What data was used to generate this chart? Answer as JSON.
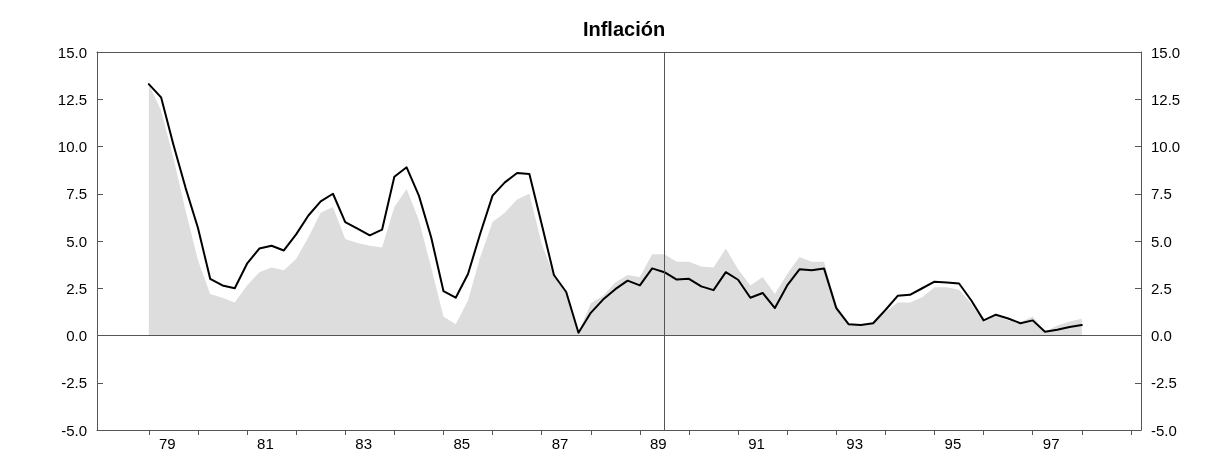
{
  "chart_data": {
    "type": "line",
    "title": "Inflación",
    "x": [
      78.625,
      78.875,
      79.125,
      79.375,
      79.625,
      79.875,
      80.125,
      80.375,
      80.625,
      80.875,
      81.125,
      81.375,
      81.625,
      81.875,
      82.125,
      82.375,
      82.625,
      82.875,
      83.125,
      83.375,
      83.625,
      83.875,
      84.125,
      84.375,
      84.625,
      84.875,
      85.125,
      85.375,
      85.625,
      85.875,
      86.125,
      86.375,
      86.625,
      86.875,
      87.125,
      87.375,
      87.625,
      87.875,
      88.125,
      88.375,
      88.625,
      88.875,
      89.125,
      89.375,
      89.625,
      89.875,
      90.125,
      90.375,
      90.625,
      90.875,
      91.125,
      91.375,
      91.625,
      91.875,
      92.125,
      92.375,
      92.625,
      92.875,
      93.125,
      93.375,
      93.625,
      93.875,
      94.125,
      94.375,
      94.625,
      94.875,
      95.125,
      95.375,
      95.625,
      95.875,
      96.125,
      96.375,
      96.625,
      96.875,
      97.125,
      97.375,
      97.625
    ],
    "series": [
      {
        "type": "area",
        "color": "#dddddd",
        "values": [
          13.3,
          11.9,
          9.4,
          6.6,
          4.0,
          2.2,
          2.0,
          1.75,
          2.65,
          3.35,
          3.6,
          3.45,
          4.05,
          5.2,
          6.5,
          6.8,
          5.1,
          4.9,
          4.75,
          4.65,
          6.8,
          7.75,
          6.1,
          3.6,
          1.0,
          0.6,
          1.85,
          4.15,
          6.0,
          6.5,
          7.2,
          7.5,
          4.85,
          3.15,
          2.2,
          0.15,
          1.7,
          2.1,
          2.8,
          3.2,
          3.1,
          4.3,
          4.3,
          3.9,
          3.9,
          3.65,
          3.6,
          4.6,
          3.5,
          2.65,
          3.1,
          2.2,
          3.25,
          4.15,
          3.9,
          3.9,
          1.6,
          0.65,
          0.57,
          0.65,
          1.25,
          1.75,
          1.75,
          2.03,
          2.55,
          2.55,
          2.42,
          1.68,
          0.7,
          1.06,
          0.8,
          0.7,
          1.0,
          0.2,
          0.53,
          0.74,
          0.88
        ]
      },
      {
        "type": "line",
        "color": "#000000",
        "values": [
          13.3,
          12.6,
          10.1,
          7.8,
          5.7,
          3.0,
          2.65,
          2.5,
          3.8,
          4.6,
          4.75,
          4.5,
          5.35,
          6.35,
          7.1,
          7.5,
          6.0,
          5.65,
          5.3,
          5.6,
          8.4,
          8.9,
          7.4,
          5.2,
          2.35,
          2.0,
          3.25,
          5.4,
          7.4,
          8.1,
          8.6,
          8.55,
          5.9,
          3.2,
          2.3,
          0.15,
          1.2,
          1.9,
          2.45,
          2.9,
          2.65,
          3.55,
          3.35,
          2.96,
          3.0,
          2.6,
          2.4,
          3.35,
          2.95,
          2.0,
          2.25,
          1.45,
          2.65,
          3.5,
          3.45,
          3.55,
          1.45,
          0.6,
          0.55,
          0.65,
          1.35,
          2.1,
          2.15,
          2.5,
          2.85,
          2.8,
          2.75,
          1.85,
          0.8,
          1.1,
          0.9,
          0.65,
          0.8,
          0.2,
          0.3,
          0.45,
          0.55
        ]
      }
    ],
    "xlim": [
      77.57,
      98.83
    ],
    "xticks": [
      {
        "value": 78.625,
        "label": null
      },
      79,
      {
        "value": 79.625,
        "label": null
      },
      {
        "value": 80.625,
        "label": null
      },
      81,
      {
        "value": 81.625,
        "label": null
      },
      {
        "value": 82.625,
        "label": null
      },
      83,
      {
        "value": 83.625,
        "label": null
      },
      {
        "value": 84.625,
        "label": null
      },
      85,
      {
        "value": 85.625,
        "label": null
      },
      {
        "value": 86.625,
        "label": null
      },
      87,
      {
        "value": 87.625,
        "label": null
      },
      {
        "value": 88.625,
        "label": null
      },
      89,
      {
        "value": 89.625,
        "label": null
      },
      {
        "value": 90.625,
        "label": null
      },
      91,
      {
        "value": 91.625,
        "label": null
      },
      {
        "value": 92.625,
        "label": null
      },
      93,
      {
        "value": 93.625,
        "label": null
      },
      {
        "value": 94.625,
        "label": null
      },
      95,
      {
        "value": 95.625,
        "label": null
      },
      {
        "value": 96.625,
        "label": null
      },
      97,
      {
        "value": 97.625,
        "label": null
      },
      {
        "value": 98.625,
        "label": null
      }
    ],
    "ylim": [
      -5,
      15
    ],
    "yticks": [
      {
        "value": -5,
        "label": "-5.0"
      },
      {
        "value": -2.5,
        "label": "-2.5"
      },
      {
        "value": 0,
        "label": "0.0"
      },
      {
        "value": 2.5,
        "label": "2.5"
      },
      {
        "value": 5,
        "label": "5.0"
      },
      {
        "value": 7.5,
        "label": "7.5"
      },
      {
        "value": 10,
        "label": "10.0"
      },
      {
        "value": 12.5,
        "label": "12.5"
      },
      {
        "value": 15,
        "label": "15.0"
      }
    ],
    "y2lim": [
      -5,
      15
    ],
    "y2ticks": [
      {
        "value": -5,
        "label": "-5.0"
      },
      {
        "value": -2.5,
        "label": "-2.5"
      },
      {
        "value": 0,
        "label": "0.0"
      },
      {
        "value": 2.5,
        "label": "2.5"
      },
      {
        "value": 5,
        "label": "5.0"
      },
      {
        "value": 7.5,
        "label": "7.5"
      },
      {
        "value": 10,
        "label": "10.0"
      },
      {
        "value": 12.5,
        "label": "12.5"
      },
      {
        "value": 15,
        "label": "15.0"
      }
    ],
    "ref_lines": [
      {
        "axis": "y",
        "value": 0,
        "color": "#555555"
      },
      {
        "axis": "x",
        "value": 89.125,
        "color": "#555555"
      }
    ],
    "grid": false,
    "marker": "none",
    "line_style": "solid"
  }
}
